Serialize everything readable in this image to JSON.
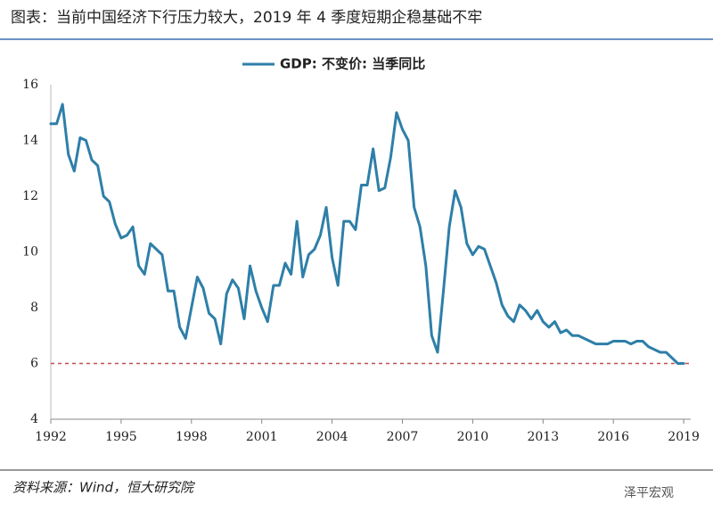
{
  "title": "图表：当前中国经济下行压力较大，2019 年 4 季度短期企稳基础不牢",
  "source": "资料来源：Wind，恒大研究院",
  "watermark": "泽平宏观",
  "chart_data": {
    "type": "line",
    "x": [
      1992.0,
      1992.25,
      1992.5,
      1992.75,
      1993.0,
      1993.25,
      1993.5,
      1993.75,
      1994.0,
      1994.25,
      1994.5,
      1994.75,
      1995.0,
      1995.25,
      1995.5,
      1995.75,
      1996.0,
      1996.25,
      1996.5,
      1996.75,
      1997.0,
      1997.25,
      1997.5,
      1997.75,
      1998.0,
      1998.25,
      1998.5,
      1998.75,
      1999.0,
      1999.25,
      1999.5,
      1999.75,
      2000.0,
      2000.25,
      2000.5,
      2000.75,
      2001.0,
      2001.25,
      2001.5,
      2001.75,
      2002.0,
      2002.25,
      2002.5,
      2002.75,
      2003.0,
      2003.25,
      2003.5,
      2003.75,
      2004.0,
      2004.25,
      2004.5,
      2004.75,
      2005.0,
      2005.25,
      2005.5,
      2005.75,
      2006.0,
      2006.25,
      2006.5,
      2006.75,
      2007.0,
      2007.25,
      2007.5,
      2007.75,
      2008.0,
      2008.25,
      2008.5,
      2008.75,
      2009.0,
      2009.25,
      2009.5,
      2009.75,
      2010.0,
      2010.25,
      2010.5,
      2010.75,
      2011.0,
      2011.25,
      2011.5,
      2011.75,
      2012.0,
      2012.25,
      2012.5,
      2012.75,
      2013.0,
      2013.25,
      2013.5,
      2013.75,
      2014.0,
      2014.25,
      2014.5,
      2014.75,
      2015.0,
      2015.25,
      2015.5,
      2015.75,
      2016.0,
      2016.25,
      2016.5,
      2016.75,
      2017.0,
      2017.25,
      2017.5,
      2017.75,
      2018.0,
      2018.25,
      2018.5,
      2018.75,
      2019.0
    ],
    "series": [
      {
        "name": "GDP: 不变价: 当季同比",
        "color": "#2e7fa8",
        "values": [
          14.6,
          14.6,
          15.3,
          13.5,
          12.9,
          14.1,
          14.0,
          13.3,
          13.1,
          12.0,
          11.8,
          11.0,
          10.5,
          10.6,
          10.9,
          9.5,
          9.2,
          10.3,
          10.1,
          9.9,
          8.6,
          8.6,
          7.3,
          6.9,
          8.0,
          9.1,
          8.7,
          7.8,
          7.6,
          6.7,
          8.5,
          9.0,
          8.7,
          7.6,
          9.5,
          8.6,
          8.0,
          7.5,
          8.8,
          8.8,
          9.6,
          9.2,
          11.1,
          9.1,
          9.9,
          10.1,
          10.6,
          11.6,
          9.8,
          8.8,
          11.1,
          11.1,
          10.8,
          12.4,
          12.4,
          13.7,
          12.2,
          12.3,
          13.4,
          15.0,
          14.4,
          14.0,
          11.6,
          10.9,
          9.5,
          7.0,
          6.4,
          8.6,
          10.9,
          12.2,
          11.6,
          10.3,
          9.9,
          10.2,
          10.1,
          9.5,
          8.9,
          8.1,
          7.7,
          7.5,
          8.1,
          7.9,
          7.6,
          7.9,
          7.5,
          7.3,
          7.5,
          7.1,
          7.2,
          7.0,
          7.0,
          6.9,
          6.8,
          6.7,
          6.7,
          6.7,
          6.8,
          6.8,
          6.8,
          6.7,
          6.8,
          6.8,
          6.6,
          6.5,
          6.4,
          6.4,
          6.2,
          6.0,
          6.0
        ]
      }
    ],
    "reference_line": {
      "value": 6,
      "color": "#c0504d",
      "style": "dashed"
    },
    "xlim": [
      1992,
      2019.3
    ],
    "xticks": [
      1992,
      1995,
      1998,
      2001,
      2004,
      2007,
      2010,
      2013,
      2016,
      2019
    ],
    "ylim": [
      4,
      16
    ],
    "yticks": [
      4,
      6,
      8,
      10,
      12,
      14,
      16
    ],
    "grid": false
  }
}
